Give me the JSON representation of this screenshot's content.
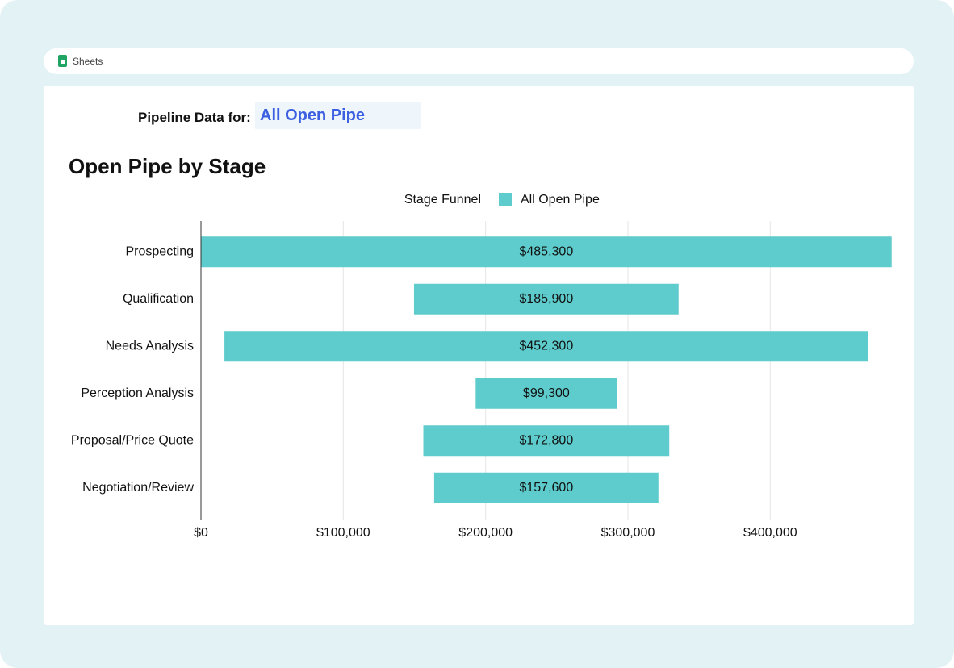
{
  "app": "Sheets",
  "filter": {
    "label": "Pipeline Data for:",
    "value": "All Open Pipe"
  },
  "chart_data": {
    "type": "funnel",
    "title": "Open Pipe by Stage",
    "legend_title": "Stage Funnel",
    "categories": [
      "Prospecting",
      "Qualification",
      "Needs Analysis",
      "Perception Analysis",
      "Proposal/Price Quote",
      "Negotiation/Review"
    ],
    "series": [
      {
        "name": "All Open Pipe",
        "color": "#5ecccc",
        "values": [
          485300,
          185900,
          452300,
          99300,
          172800,
          157600
        ],
        "value_labels": [
          "$485,300",
          "$185,900",
          "$452,300",
          "$99,300",
          "$172,800",
          "$157,600"
        ]
      }
    ],
    "xlim": [
      0,
      490000
    ],
    "xticks": [
      {
        "value": 0,
        "label": "$0"
      },
      {
        "value": 100000,
        "label": "$100,000"
      },
      {
        "value": 200000,
        "label": "$200,000"
      },
      {
        "value": 300000,
        "label": "$300,000"
      },
      {
        "value": 400000,
        "label": "$400,000"
      }
    ],
    "grid": true
  }
}
